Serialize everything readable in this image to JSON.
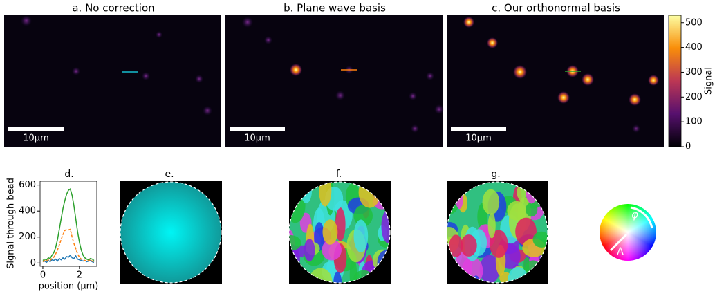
{
  "panels": {
    "a": "a. No correction",
    "b": "b. Plane wave basis",
    "c": "c. Our orthonormal basis",
    "scale_bar": "10µm",
    "e": "e.",
    "f": "f.",
    "g": "g."
  },
  "colorbar": {
    "label": "Signal",
    "lim": [
      0,
      530
    ],
    "ticks": [
      0,
      100,
      200,
      300,
      400,
      500
    ]
  },
  "wheel": {
    "phase": "φ",
    "amplitude": "A"
  },
  "chart_data": {
    "type": "line",
    "title": "d.",
    "x_label": "position (μm)",
    "y_label": "Signal through bead",
    "x": [
      0,
      0.1,
      0.2,
      0.3,
      0.4,
      0.5,
      0.6,
      0.7,
      0.8,
      0.9,
      1.0,
      1.1,
      1.2,
      1.3,
      1.4,
      1.5,
      1.6,
      1.7,
      1.8,
      1.9,
      2.0,
      2.1,
      2.2,
      2.3,
      2.4,
      2.5,
      2.6,
      2.7,
      2.8
    ],
    "series": [
      {
        "color": "#1f77b4",
        "dash": false,
        "values": [
          10,
          15,
          5,
          20,
          10,
          25,
          20,
          30,
          15,
          35,
          25,
          40,
          30,
          50,
          45,
          60,
          40,
          35,
          55,
          30,
          25,
          20,
          15,
          20,
          10,
          15,
          20,
          10,
          5
        ]
      },
      {
        "color": "#ff7f0e",
        "dash": true,
        "values": [
          10,
          20,
          15,
          25,
          20,
          35,
          45,
          70,
          100,
          140,
          180,
          220,
          250,
          260,
          255,
          260,
          200,
          150,
          110,
          70,
          45,
          30,
          25,
          20,
          15,
          20,
          25,
          15,
          10
        ]
      },
      {
        "color": "#2ca02c",
        "dash": false,
        "values": [
          20,
          30,
          25,
          40,
          35,
          60,
          80,
          120,
          180,
          260,
          340,
          420,
          480,
          530,
          560,
          570,
          520,
          440,
          340,
          240,
          160,
          100,
          60,
          40,
          30,
          25,
          35,
          30,
          20
        ]
      }
    ],
    "xlim": [
      -0.15,
      2.95
    ],
    "ylim": [
      -25,
      630
    ],
    "xticks": [
      0,
      2
    ],
    "yticks": [
      0,
      200,
      400,
      600
    ]
  }
}
